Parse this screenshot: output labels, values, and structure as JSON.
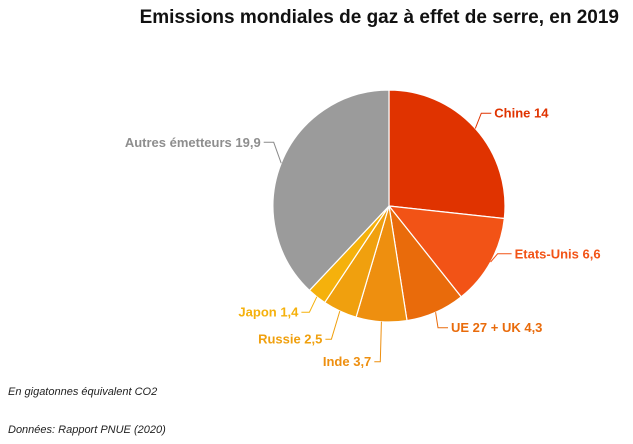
{
  "chart_data": {
    "type": "pie",
    "title": "Emissions mondiales de gaz à effet de serre, en 2019",
    "unit_note": "En gigatonnes équivalent CO2",
    "source": "Données: Rapport PNUE (2020)",
    "slices": [
      {
        "label": "Chine 14",
        "value": 14,
        "color": "#e03300"
      },
      {
        "label": "Etats-Unis 6,6",
        "value": 6.6,
        "color": "#f25316"
      },
      {
        "label": "UE 27 + UK 4,3",
        "value": 4.3,
        "color": "#e96b0b"
      },
      {
        "label": "Inde 3,7",
        "value": 3.7,
        "color": "#ee8f0f"
      },
      {
        "label": "Russie 2,5",
        "value": 2.5,
        "color": "#f0a00e"
      },
      {
        "label": "Japon 1,4",
        "value": 1.4,
        "color": "#f5b10c"
      },
      {
        "label": "Autres émetteurs 19,9",
        "value": 19.9,
        "color": "#9b9b9b"
      }
    ]
  }
}
